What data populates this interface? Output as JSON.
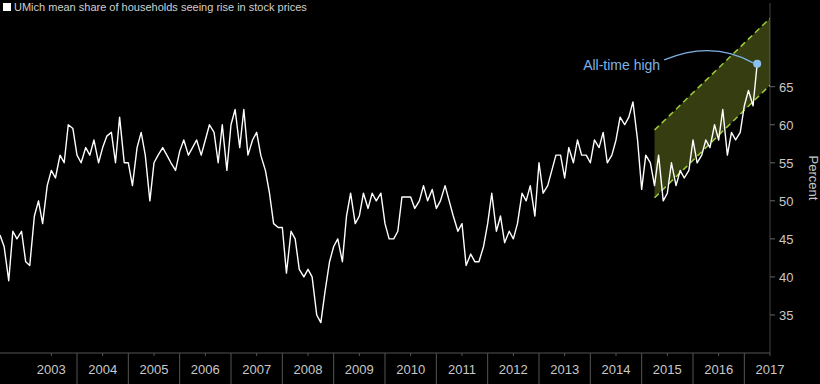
{
  "chart_data": {
    "type": "line",
    "y_label": "Percent",
    "x": [
      2002.5,
      2002.58,
      2002.67,
      2002.75,
      2002.83,
      2002.92,
      2003,
      2003.08,
      2003.17,
      2003.25,
      2003.33,
      2003.42,
      2003.5,
      2003.58,
      2003.67,
      2003.75,
      2003.83,
      2003.92,
      2004,
      2004.08,
      2004.17,
      2004.25,
      2004.33,
      2004.42,
      2004.5,
      2004.58,
      2004.67,
      2004.75,
      2004.83,
      2004.92,
      2005,
      2005.08,
      2005.17,
      2005.25,
      2005.33,
      2005.42,
      2005.5,
      2005.58,
      2005.67,
      2005.75,
      2005.83,
      2005.92,
      2006,
      2006.08,
      2006.17,
      2006.25,
      2006.33,
      2006.42,
      2006.5,
      2006.58,
      2006.67,
      2006.75,
      2006.83,
      2006.92,
      2007,
      2007.08,
      2007.17,
      2007.25,
      2007.33,
      2007.42,
      2007.5,
      2007.58,
      2007.67,
      2007.75,
      2007.83,
      2007.92,
      2008,
      2008.08,
      2008.17,
      2008.25,
      2008.33,
      2008.42,
      2008.5,
      2008.58,
      2008.67,
      2008.75,
      2008.83,
      2008.92,
      2009,
      2009.08,
      2009.17,
      2009.25,
      2009.33,
      2009.42,
      2009.5,
      2009.58,
      2009.67,
      2009.75,
      2009.83,
      2009.92,
      2010,
      2010.08,
      2010.17,
      2010.25,
      2010.33,
      2010.42,
      2010.5,
      2010.58,
      2010.67,
      2010.75,
      2010.83,
      2010.92,
      2011,
      2011.08,
      2011.17,
      2011.25,
      2011.33,
      2011.42,
      2011.5,
      2011.58,
      2011.67,
      2011.75,
      2011.83,
      2011.92,
      2012,
      2012.08,
      2012.17,
      2012.25,
      2012.33,
      2012.42,
      2012.5,
      2012.58,
      2012.67,
      2012.75,
      2012.83,
      2012.92,
      2013,
      2013.08,
      2013.17,
      2013.25,
      2013.33,
      2013.42,
      2013.5,
      2013.58,
      2013.67,
      2013.75,
      2013.83,
      2013.92,
      2014,
      2014.08,
      2014.17,
      2014.25,
      2014.33,
      2014.42,
      2014.5,
      2014.58,
      2014.67,
      2014.75,
      2014.83,
      2014.92,
      2015,
      2015.08,
      2015.17,
      2015.25,
      2015.33,
      2015.42,
      2015.5,
      2015.58,
      2015.67,
      2015.75,
      2015.83,
      2015.92,
      2016,
      2016.08,
      2016.17,
      2016.25,
      2016.33,
      2016.42,
      2016.5,
      2016.58,
      2016.67,
      2016.75,
      2016.83,
      2016.92,
      2017,
      2017.08,
      2017.17,
      2017.25
    ],
    "series": [
      {
        "name": "UMich mean share of households seeing rise in stock prices",
        "color": "#ffffff",
        "values": [
          45.5,
          44,
          39.5,
          46,
          45,
          46,
          42,
          41.5,
          48,
          50,
          47,
          52,
          54,
          53,
          56,
          55,
          60,
          59.5,
          56,
          55,
          57,
          56,
          58,
          55,
          57,
          58.5,
          59,
          55,
          61,
          55,
          55,
          52,
          57,
          59,
          56,
          50,
          55,
          56,
          57,
          56,
          55,
          54,
          56.5,
          58,
          56,
          57,
          58,
          56,
          58,
          60,
          59,
          55,
          60,
          54,
          60,
          62,
          57,
          62,
          56,
          58,
          59,
          56,
          54,
          51,
          47,
          46.5,
          46.5,
          40.5,
          46,
          45,
          41,
          40,
          41,
          40,
          35,
          34,
          38,
          42,
          44,
          45,
          42,
          48,
          51,
          47,
          48,
          51,
          49,
          51,
          50,
          51,
          47,
          45,
          45,
          46,
          50.5,
          50.5,
          50.5,
          49,
          50,
          52,
          50,
          51.5,
          49,
          50,
          52,
          50,
          48,
          46,
          47,
          41.5,
          43,
          42,
          42,
          44,
          47,
          51,
          46,
          48,
          44.5,
          46,
          45,
          47,
          51,
          50,
          52,
          48,
          55,
          51,
          52,
          54,
          56,
          56,
          53,
          57,
          55,
          58,
          56,
          56,
          55,
          58,
          57,
          59,
          55,
          56,
          58,
          61,
          60,
          61,
          63,
          58,
          51.5,
          56,
          55,
          52,
          56,
          50,
          51,
          55,
          52,
          54,
          53,
          54,
          58,
          55,
          56,
          58,
          57,
          60,
          58,
          62,
          56,
          59,
          58,
          59,
          62.5,
          64.5,
          62.5,
          68
        ]
      }
    ],
    "trend_channel": {
      "x": [
        2015.25,
        2017.5
      ],
      "lower": [
        50.4,
        65.2
      ],
      "upper": [
        59.3,
        74
      ]
    },
    "annotations": [
      {
        "text": "All-time high",
        "x": 2017.25,
        "y": 68
      }
    ],
    "xlim": [
      2002.5,
      2017.5
    ],
    "xticks": [
      {
        "value": 2003.5,
        "label": "2003"
      },
      {
        "value": 2004.5,
        "label": "2004"
      },
      {
        "value": 2005.5,
        "label": "2005"
      },
      {
        "value": 2006.5,
        "label": "2006"
      },
      {
        "value": 2007.5,
        "label": "2007"
      },
      {
        "value": 2008.5,
        "label": "2008"
      },
      {
        "value": 2009.5,
        "label": "2009"
      },
      {
        "value": 2010.5,
        "label": "2010"
      },
      {
        "value": 2011.5,
        "label": "2011"
      },
      {
        "value": 2012.5,
        "label": "2012"
      },
      {
        "value": 2013.5,
        "label": "2013"
      },
      {
        "value": 2014.5,
        "label": "2014"
      },
      {
        "value": 2015.5,
        "label": "2015"
      },
      {
        "value": 2016.5,
        "label": "2016"
      },
      {
        "value": 2017.5,
        "label": "2017"
      }
    ],
    "ylim": [
      30,
      76
    ],
    "yticks": [
      35,
      40,
      45,
      50,
      55,
      60,
      65
    ],
    "grid": false
  }
}
